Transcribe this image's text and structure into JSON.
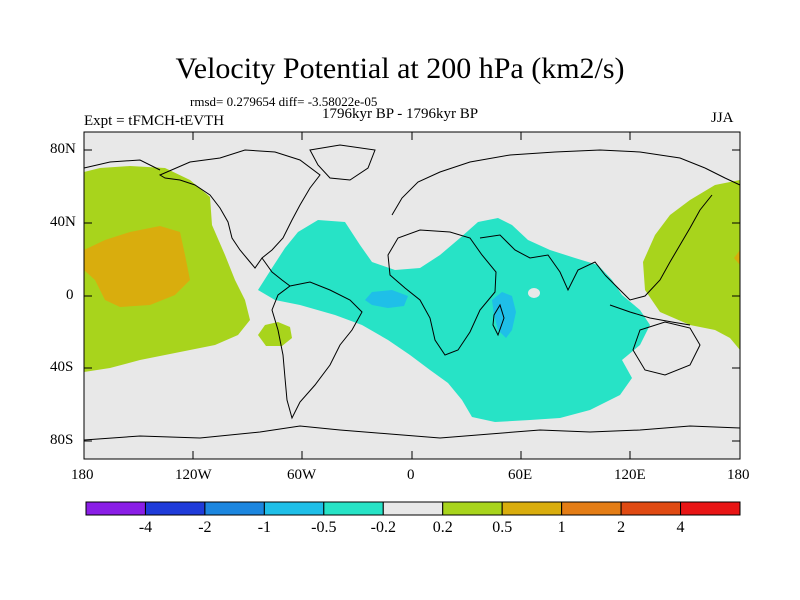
{
  "title": "Velocity Potential at 200 hPa (km2/s)",
  "stats": "rmsd= 0.279654 diff= -3.58022e-05",
  "experiment": "Expt = tFMCH-tEVTH",
  "period": "1796kyr BP - 1796kyr BP",
  "season": "JJA",
  "y_axis_labels": [
    "80N",
    "40N",
    "0",
    "40S",
    "80S"
  ],
  "x_axis_labels": [
    "180",
    "120W",
    "60W",
    "0",
    "60E",
    "120E",
    "180"
  ],
  "colorbar": {
    "labels": [
      "-4",
      "-2",
      "-1",
      "-0.5",
      "-0.2",
      "0.2",
      "0.5",
      "1",
      "2",
      "4"
    ],
    "colors": [
      "#8a1ee6",
      "#1f3bd9",
      "#1c86df",
      "#1fbfe8",
      "#27e3c6",
      "#e8e8e8",
      "#a8d41c",
      "#d9ad0d",
      "#e47d16",
      "#e04a12",
      "#e81515"
    ]
  },
  "fields": {
    "background": "#e8e8e8",
    "positive_light": "#a8d41c",
    "positive_mid": "#d9ad0d",
    "negative_light": "#27e3c6",
    "negative_mid": "#1fbfe8",
    "negative_strong": "#1c86df"
  }
}
